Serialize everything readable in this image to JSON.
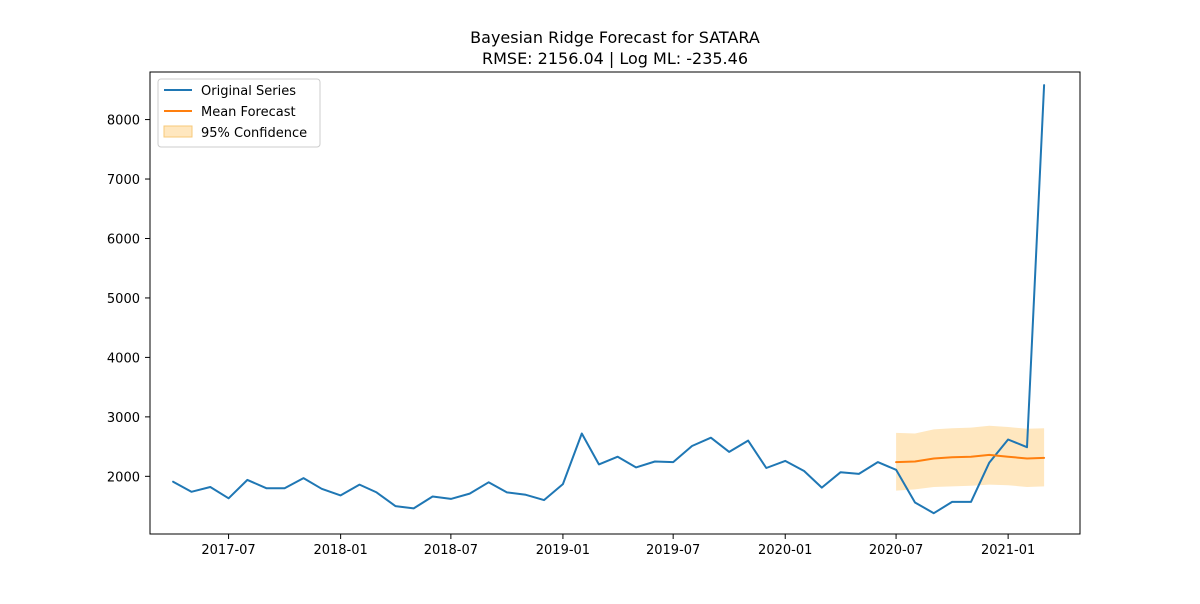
{
  "chart_data": {
    "type": "line",
    "title": "Bayesian Ridge Forecast for SATARA",
    "subtitle": "RMSE: 2156.04 | Log ML: -235.46",
    "xlabel": "",
    "ylabel": "",
    "grid": false,
    "legend_position": "top-left",
    "xlim": [
      "2017-02-22",
      "2021-04-29"
    ],
    "ylim": [
      1030,
      8800
    ],
    "x_ticks": [
      "2017-07-01",
      "2018-01-01",
      "2018-07-01",
      "2019-01-01",
      "2019-07-01",
      "2020-01-01",
      "2020-07-01",
      "2021-01-01"
    ],
    "x_tick_labels": [
      "2017-07",
      "2018-01",
      "2018-07",
      "2019-01",
      "2019-07",
      "2020-01",
      "2020-07",
      "2021-01"
    ],
    "y_ticks": [
      2000,
      3000,
      4000,
      5000,
      6000,
      7000,
      8000
    ],
    "y_tick_labels": [
      "2000",
      "3000",
      "4000",
      "5000",
      "6000",
      "7000",
      "8000"
    ],
    "series": [
      {
        "name": "Original Series",
        "kind": "line",
        "color": "#1f77b4",
        "x": [
          "2017-04-01",
          "2017-05-01",
          "2017-06-01",
          "2017-07-01",
          "2017-08-01",
          "2017-09-01",
          "2017-10-01",
          "2017-11-01",
          "2017-12-01",
          "2018-01-01",
          "2018-02-01",
          "2018-03-01",
          "2018-04-01",
          "2018-05-01",
          "2018-06-01",
          "2018-07-01",
          "2018-08-01",
          "2018-09-01",
          "2018-10-01",
          "2018-11-01",
          "2018-12-01",
          "2019-01-01",
          "2019-02-01",
          "2019-03-01",
          "2019-04-01",
          "2019-05-01",
          "2019-06-01",
          "2019-07-01",
          "2019-08-01",
          "2019-09-01",
          "2019-10-01",
          "2019-11-01",
          "2019-12-01",
          "2020-01-01",
          "2020-02-01",
          "2020-03-01",
          "2020-04-01",
          "2020-05-01",
          "2020-06-01",
          "2020-07-01",
          "2020-08-01",
          "2020-09-01",
          "2020-10-01",
          "2020-11-01",
          "2020-12-01",
          "2021-01-01",
          "2021-02-01",
          "2021-03-01"
        ],
        "values": [
          1910,
          1740,
          1820,
          1630,
          1940,
          1800,
          1800,
          1970,
          1790,
          1680,
          1860,
          1730,
          1500,
          1460,
          1660,
          1620,
          1710,
          1900,
          1730,
          1690,
          1600,
          1870,
          2720,
          2200,
          2330,
          2150,
          2250,
          2240,
          2510,
          2650,
          2410,
          2600,
          2140,
          2260,
          2090,
          1810,
          2070,
          2040,
          2240,
          2110,
          1560,
          1380,
          1570,
          1570,
          2230,
          2620,
          2490,
          8580
        ]
      },
      {
        "name": "Mean Forecast",
        "kind": "line",
        "color": "#ff7f0e",
        "x": [
          "2020-07-01",
          "2020-08-01",
          "2020-09-01",
          "2020-10-01",
          "2020-11-01",
          "2020-12-01",
          "2021-01-01",
          "2021-02-01",
          "2021-03-01"
        ],
        "values": [
          2240,
          2250,
          2300,
          2320,
          2330,
          2360,
          2330,
          2300,
          2310
        ]
      },
      {
        "name": "95% Confidence",
        "kind": "band",
        "color": "#ffe7bf",
        "edge_color": "#f7c878",
        "x": [
          "2020-07-01",
          "2020-08-01",
          "2020-09-01",
          "2020-10-01",
          "2020-11-01",
          "2020-12-01",
          "2021-01-01",
          "2021-02-01",
          "2021-03-01"
        ],
        "lower": [
          1760,
          1780,
          1820,
          1830,
          1840,
          1860,
          1850,
          1820,
          1830
        ],
        "upper": [
          2730,
          2720,
          2790,
          2810,
          2820,
          2850,
          2830,
          2800,
          2810
        ]
      }
    ]
  }
}
